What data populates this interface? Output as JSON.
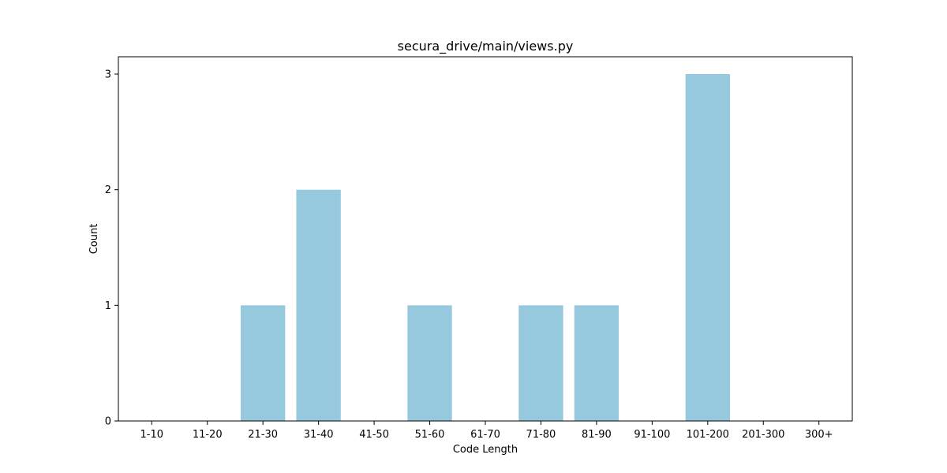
{
  "chart_data": {
    "type": "bar",
    "title": "secura_drive/main/views.py",
    "xlabel": "Code Length",
    "ylabel": "Count",
    "categories": [
      "1-10",
      "11-20",
      "21-30",
      "31-40",
      "41-50",
      "51-60",
      "61-70",
      "71-80",
      "81-90",
      "91-100",
      "101-200",
      "201-300",
      "300+"
    ],
    "values": [
      0,
      0,
      1,
      2,
      0,
      1,
      0,
      1,
      1,
      0,
      3,
      0,
      0
    ],
    "ylim": [
      0,
      3.15
    ],
    "yticks": [
      "0",
      "1",
      "2",
      "3"
    ],
    "bar_color": "#96c9dd",
    "grid": false,
    "legend": "none"
  }
}
